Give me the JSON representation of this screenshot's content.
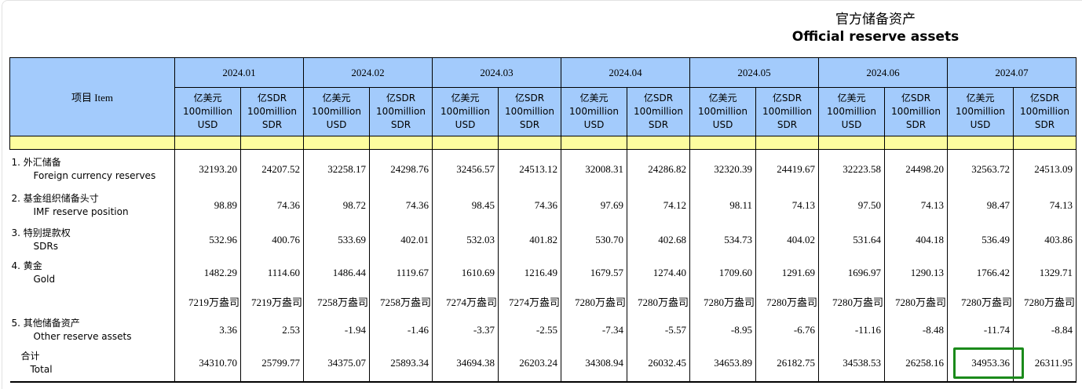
{
  "title": {
    "cn": "官方储备资产",
    "en": "Official reserve assets"
  },
  "header": {
    "item_label": "项目  Item",
    "months": [
      "2024.01",
      "2024.02",
      "2024.03",
      "2024.04",
      "2024.05",
      "2024.06",
      "2024.07"
    ],
    "units": {
      "usd": [
        "亿美元",
        "100million",
        "USD"
      ],
      "sdr": [
        "亿SDR",
        "100million",
        "SDR"
      ]
    }
  },
  "rows": [
    {
      "cn": "1.  外汇储备",
      "en": "Foreign currency reserves",
      "values": [
        "32193.20",
        "24207.52",
        "32258.17",
        "24298.76",
        "32456.57",
        "24513.12",
        "32008.31",
        "24286.82",
        "32320.39",
        "24419.67",
        "32223.58",
        "24498.20",
        "32563.72",
        "24513.09"
      ]
    },
    {
      "cn": "2.  基金组织储备头寸",
      "en": "IMF reserve position",
      "values": [
        "98.89",
        "74.36",
        "98.72",
        "74.36",
        "98.45",
        "74.36",
        "97.69",
        "74.12",
        "98.11",
        "74.13",
        "97.50",
        "74.13",
        "98.47",
        "74.13"
      ]
    },
    {
      "cn": "3.  特别提款权",
      "en": "SDRs",
      "values": [
        "532.96",
        "400.76",
        "533.69",
        "402.01",
        "532.03",
        "401.82",
        "530.70",
        "402.68",
        "534.73",
        "404.02",
        "531.64",
        "404.18",
        "536.49",
        "403.86"
      ]
    },
    {
      "cn": "4.  黄金",
      "en": "Gold",
      "values": [
        "1482.29",
        "1114.60",
        "1486.44",
        "1119.67",
        "1610.69",
        "1216.49",
        "1679.57",
        "1274.40",
        "1709.60",
        "1291.69",
        "1696.97",
        "1290.13",
        "1766.42",
        "1329.71"
      ]
    },
    {
      "cn": "",
      "en": "",
      "values": [
        "7219万盎司",
        "7219万盎司",
        "7258万盎司",
        "7258万盎司",
        "7274万盎司",
        "7274万盎司",
        "7280万盎司",
        "7280万盎司",
        "7280万盎司",
        "7280万盎司",
        "7280万盎司",
        "7280万盎司",
        "7280万盎司",
        "7280万盎司"
      ]
    },
    {
      "cn": "5.  其他储备资产",
      "en": "Other reserve assets",
      "values": [
        "3.36",
        "2.53",
        "-1.94",
        "-1.46",
        "-3.37",
        "-2.55",
        "-7.34",
        "-5.57",
        "-8.95",
        "-6.76",
        "-11.16",
        "-8.48",
        "-11.74",
        "-8.84"
      ]
    },
    {
      "cn": "合计",
      "en": "Total",
      "values": [
        "34310.70",
        "25799.77",
        "34375.07",
        "25893.34",
        "34694.38",
        "26203.24",
        "34308.94",
        "26032.45",
        "34653.89",
        "26182.75",
        "34538.53",
        "26258.16",
        "34953.36",
        "26311.95"
      ]
    }
  ],
  "highlight": {
    "row": "Total",
    "month": "2024.07",
    "unit": "USD",
    "value": "34953.36",
    "color": "#1a8a1a"
  },
  "colors": {
    "header_bg": "#a3cbfc",
    "spacer_bg": "#fdfd9f"
  }
}
